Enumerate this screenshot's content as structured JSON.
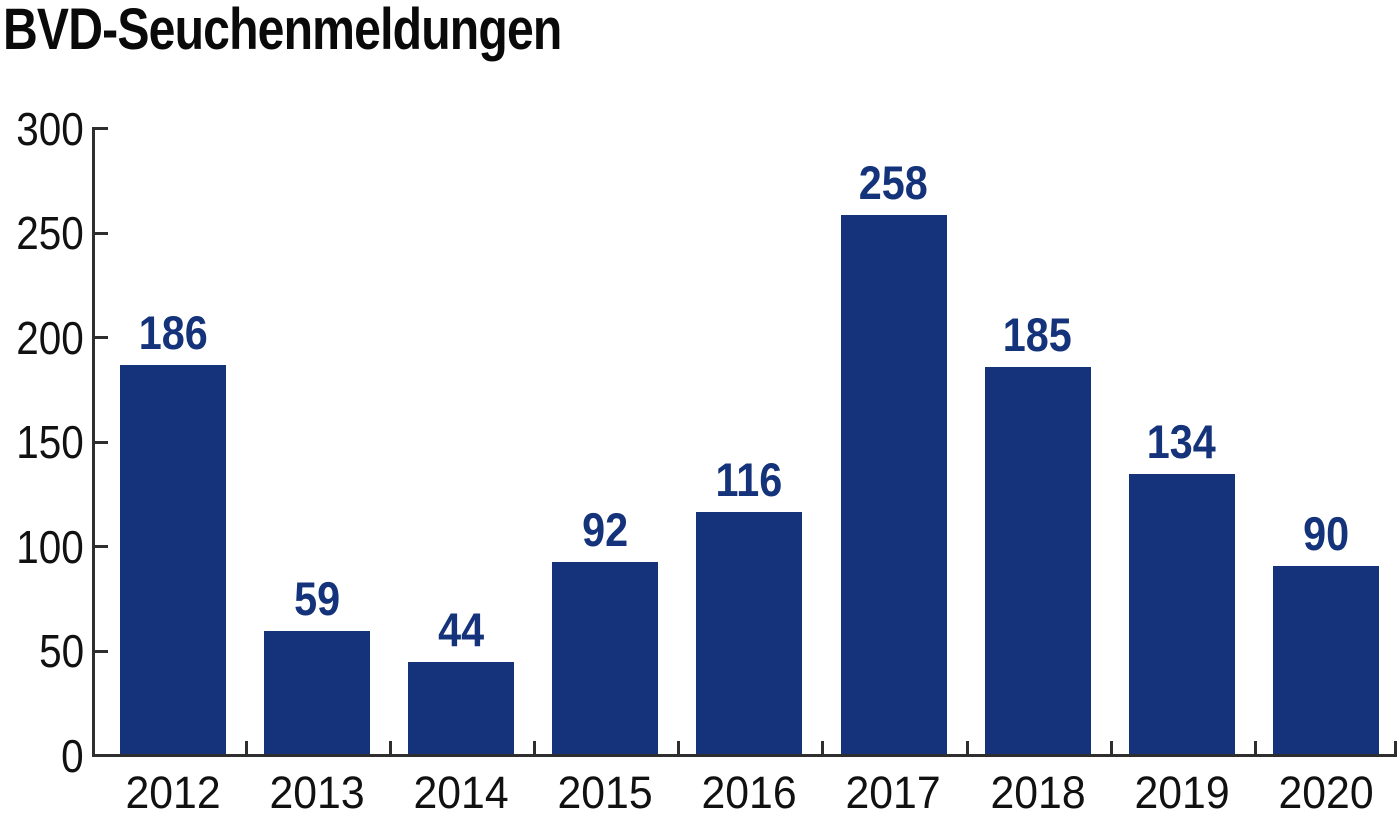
{
  "title": "BVD-Seuchenmeldungen",
  "chart_data": {
    "type": "bar",
    "title": "BVD-Seuchenmeldungen",
    "categories": [
      "2012",
      "2013",
      "2014",
      "2015",
      "2016",
      "2017",
      "2018",
      "2019",
      "2020"
    ],
    "values": [
      186,
      59,
      44,
      92,
      116,
      258,
      185,
      134,
      90
    ],
    "value_labels": [
      "186",
      "59",
      "44",
      "92",
      "116",
      "258",
      "185",
      "134",
      "90"
    ],
    "xlabel": "",
    "ylabel": "",
    "ylim": [
      0,
      300
    ],
    "ytick_step": 50,
    "ytick_labels": [
      "0",
      "50",
      "100",
      "150",
      "200",
      "250",
      "300"
    ],
    "grid": false,
    "legend": false,
    "colors": {
      "bar": "#15337a",
      "value_label": "#15337a",
      "axis": "#2e2e2e",
      "text": "#111111",
      "background": "#ffffff"
    }
  }
}
